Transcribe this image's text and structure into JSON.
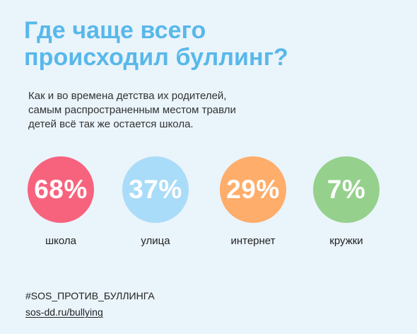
{
  "header": {
    "title_lines": [
      "Где чаще всего",
      "происходил буллинг?"
    ],
    "subtitle_lines": [
      "Как и во времена детства их родителей,",
      "самым распространенным местом травли",
      "детей всё так же остается школа."
    ]
  },
  "stats": [
    {
      "value": "68%",
      "percent": 68,
      "label": "школа",
      "color": "#f7637d"
    },
    {
      "value": "37%",
      "percent": 37,
      "label": "улица",
      "color": "#a9dcf8"
    },
    {
      "value": "29%",
      "percent": 29,
      "label": "интернет",
      "color": "#ffad6b"
    },
    {
      "value": "7%",
      "percent": 7,
      "label": "кружки",
      "color": "#95d18c"
    }
  ],
  "footer": {
    "hashtag": "#SOS_ПРОТИВ_БУЛЛИНГА",
    "link": "sos-dd.ru/bullying"
  },
  "colors": {
    "background": "#eaf4fb",
    "title": "#58b8ea",
    "body_text": "#333333"
  }
}
